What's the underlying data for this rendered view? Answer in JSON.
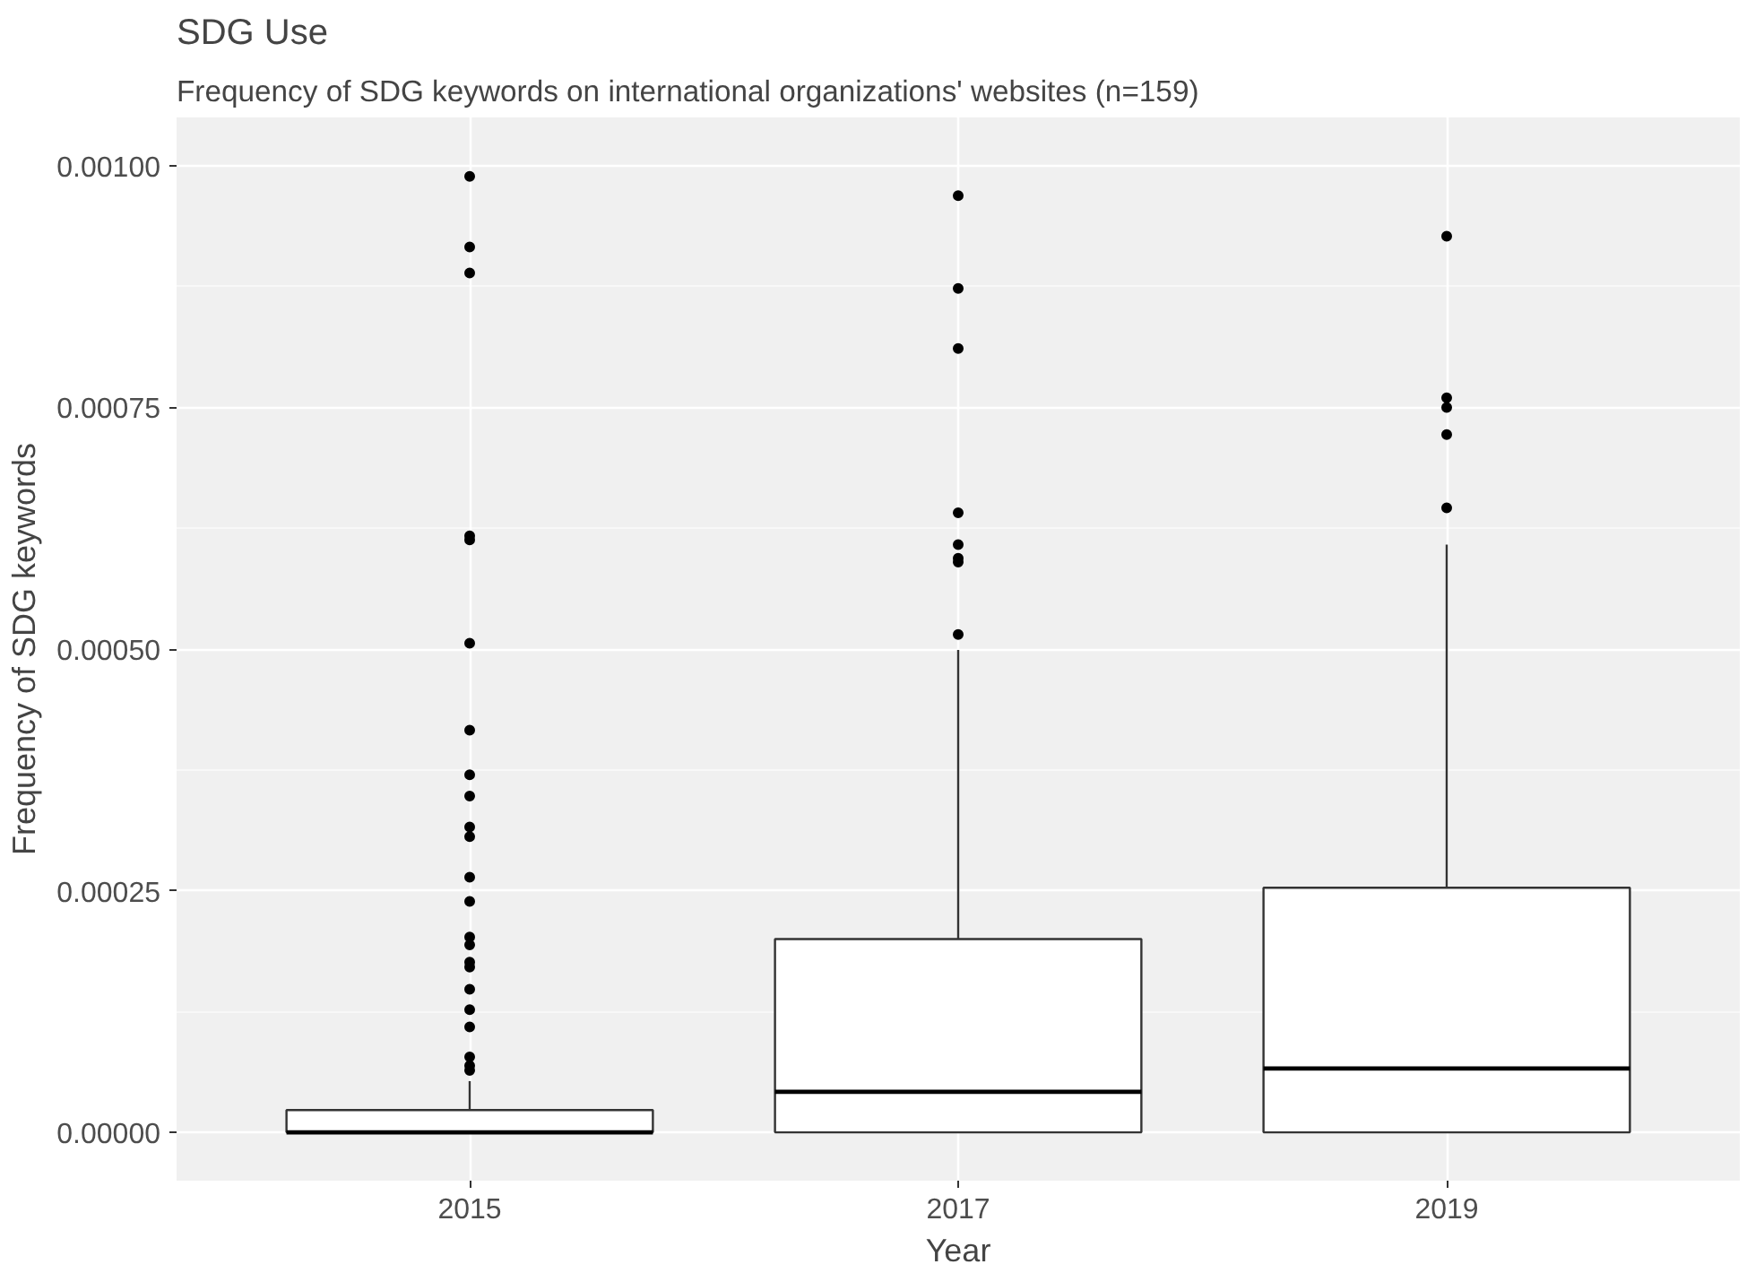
{
  "chart_data": {
    "type": "box",
    "title": "SDG Use",
    "subtitle": "Frequency of SDG keywords on international organizations' websites (n=159)",
    "xlabel": "Year",
    "ylabel": "Frequency of SDG keywords",
    "categories": [
      "2015",
      "2017",
      "2019"
    ],
    "boxes": [
      {
        "low": 0,
        "q1": 0,
        "median": 0,
        "q3": 2.3e-05,
        "high": 5.3e-05,
        "outliers": [
          0.000989,
          0.000916,
          0.000889,
          0.000617,
          0.000613,
          0.000506,
          0.000416,
          0.00037,
          0.000348,
          0.000316,
          0.000306,
          0.000264,
          0.000239,
          0.000202,
          0.000194,
          0.000176,
          0.000171,
          0.000148,
          0.000127,
          0.000109,
          7.8e-05,
          6.9e-05,
          6.4e-05
        ]
      },
      {
        "low": 0,
        "q1": 0,
        "median": 4.2e-05,
        "q3": 0.0002,
        "high": 0.000499,
        "outliers": [
          0.000969,
          0.000873,
          0.000811,
          0.000641,
          0.000608,
          0.000594,
          0.00059,
          0.000515
        ]
      },
      {
        "low": 0,
        "q1": 0,
        "median": 6.6e-05,
        "q3": 0.000253,
        "high": 0.000608,
        "outliers": [
          0.000927,
          0.00076,
          0.00075,
          0.000722,
          0.000646
        ]
      }
    ],
    "ylim": [
      -5e-05,
      0.00105
    ],
    "yticks": [
      {
        "value": 0,
        "label": "0.00000"
      },
      {
        "value": 0.00025,
        "label": "0.00025"
      },
      {
        "value": 0.0005,
        "label": "0.00050"
      },
      {
        "value": 0.00075,
        "label": "0.00075"
      },
      {
        "value": 0.001,
        "label": "0.00100"
      }
    ],
    "grid": true
  }
}
